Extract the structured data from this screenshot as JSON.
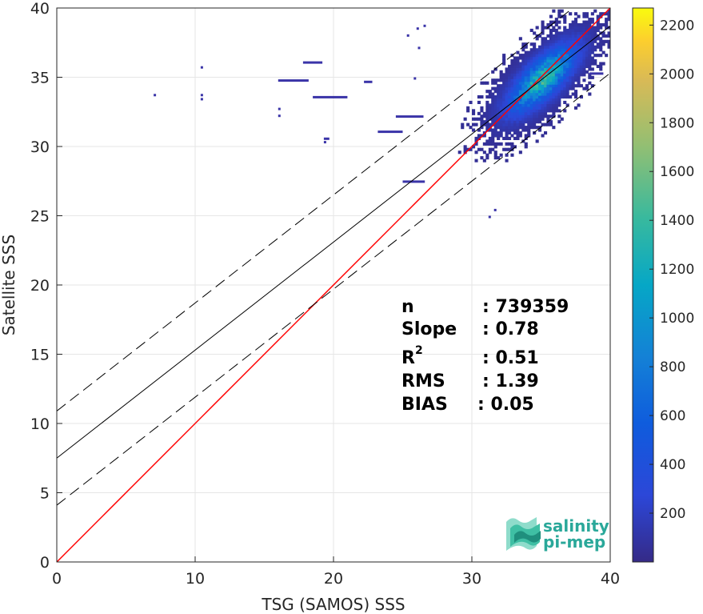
{
  "chart_data": {
    "type": "heatmap",
    "title": "",
    "xlabel": "TSG (SAMOS) SSS",
    "ylabel": "Satellite SSS",
    "xlim": [
      0,
      40
    ],
    "ylim": [
      0,
      40
    ],
    "xticks": [
      "0",
      "10",
      "20",
      "30",
      "40"
    ],
    "yticks": [
      "0",
      "5",
      "10",
      "15",
      "20",
      "25",
      "30",
      "35",
      "40"
    ],
    "grid": true,
    "colorbar": {
      "range": [
        0,
        2270
      ],
      "colormap": "parula",
      "ticks": [
        "200",
        "400",
        "600",
        "800",
        "1000",
        "1200",
        "1400",
        "1600",
        "1800",
        "2000",
        "2200"
      ]
    },
    "lines": [
      {
        "kind": "identity",
        "color": "#ff0000",
        "intercept": 0,
        "slope": 1
      },
      {
        "kind": "regression",
        "color": "#000000",
        "intercept": 7.5,
        "slope": 0.78
      },
      {
        "kind": "regression-upper",
        "color": "#000000",
        "dashed": true,
        "intercept": 10.9,
        "slope": 0.78
      },
      {
        "kind": "regression-lower",
        "color": "#000000",
        "dashed": true,
        "intercept": 4.1,
        "slope": 0.78
      }
    ],
    "density_center": {
      "x": 35,
      "y": 34.8
    }
  },
  "stats": {
    "n_label": "n",
    "n_value": ": 739359",
    "slope_label": "Slope",
    "slope_value": ": 0.78",
    "r2_label": "R",
    "r2_sup": "2",
    "r2_value": ": 0.51",
    "rms_label": "RMS",
    "rms_value": ": 1.39",
    "bias_label": "BIAS",
    "bias_value": ": 0.05"
  },
  "logo": {
    "line1": "salinity",
    "line2": "pi-mep"
  }
}
